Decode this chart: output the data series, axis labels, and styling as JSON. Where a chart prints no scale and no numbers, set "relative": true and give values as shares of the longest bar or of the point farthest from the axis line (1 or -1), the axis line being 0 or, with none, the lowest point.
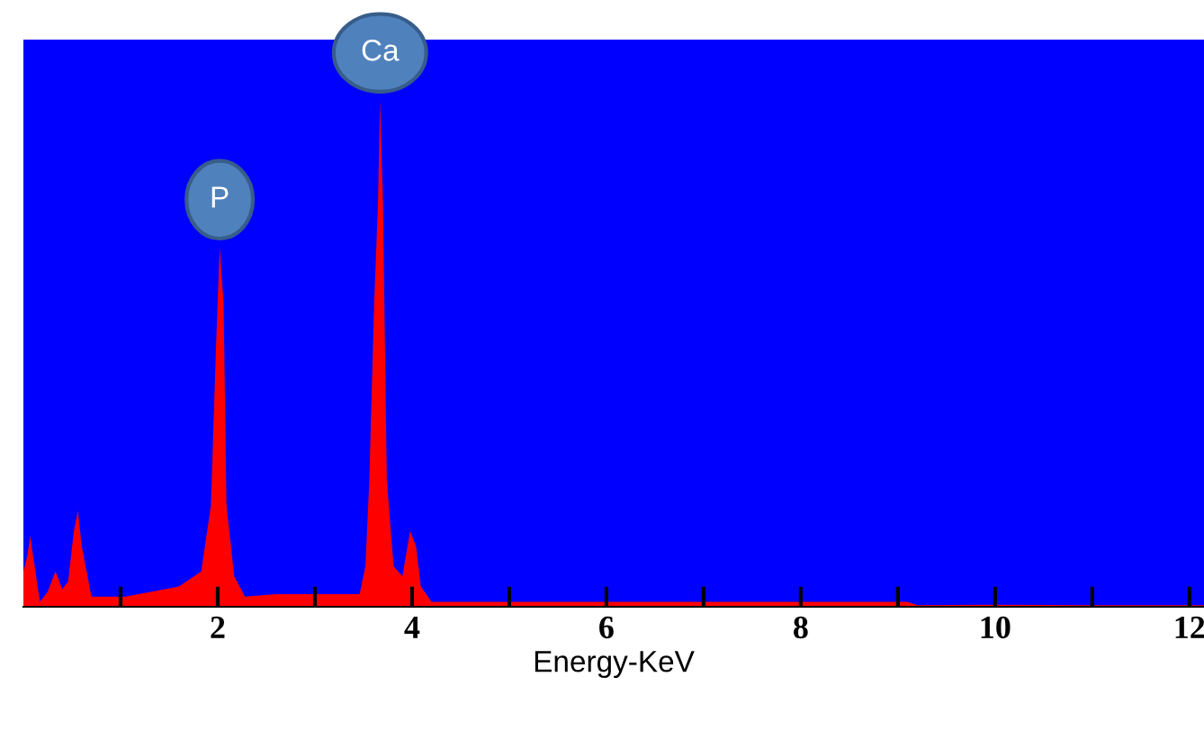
{
  "chart_data": {
    "type": "area",
    "xlabel": "Energy-KeV",
    "relative": true,
    "tick_labels": "x",
    "grid": false,
    "xlim": [
      0,
      12.15
    ],
    "xticks": [
      {
        "value": 1,
        "label": null
      },
      2,
      {
        "value": 3,
        "label": null
      },
      4,
      {
        "value": 5,
        "label": null
      },
      6,
      {
        "value": 7,
        "label": null
      },
      8,
      {
        "value": 9,
        "label": null
      },
      10,
      {
        "value": 11,
        "label": null
      },
      12
    ],
    "series": [
      {
        "color": "#ff0000",
        "x": [
          0,
          0.04,
          0.07,
          0.1,
          0.17,
          0.25,
          0.33,
          0.4,
          0.46,
          0.52,
          0.56,
          0.6,
          0.7,
          1.05,
          1.6,
          1.83,
          1.93,
          1.98,
          2.02,
          2.06,
          2.09,
          2.17,
          2.28,
          2.6,
          3.0,
          3.46,
          3.52,
          3.56,
          3.61,
          3.65,
          3.67,
          3.7,
          3.74,
          3.81,
          3.9,
          3.98,
          4.04,
          4.09,
          4.2,
          5.0,
          6.0,
          7.0,
          8.0,
          9.1,
          9.2,
          10.0,
          11.0,
          12.15
        ],
        "values": [
          0.07,
          0.1,
          0.14,
          0.1,
          0.01,
          0.03,
          0.07,
          0.035,
          0.05,
          0.15,
          0.19,
          0.12,
          0.02,
          0.02,
          0.04,
          0.07,
          0.2,
          0.5,
          0.71,
          0.6,
          0.2,
          0.06,
          0.02,
          0.025,
          0.025,
          0.025,
          0.08,
          0.25,
          0.6,
          0.8,
          1.0,
          0.8,
          0.25,
          0.08,
          0.06,
          0.15,
          0.12,
          0.04,
          0.01,
          0.01,
          0.01,
          0.01,
          0.01,
          0.01,
          0.003,
          0.004,
          0.003,
          0.003
        ]
      }
    ],
    "annotations": [
      {
        "text": "P",
        "x": 2.02,
        "y": 0.71
      },
      {
        "text": "Ca",
        "x": 3.67,
        "y": 1.0
      }
    ]
  }
}
